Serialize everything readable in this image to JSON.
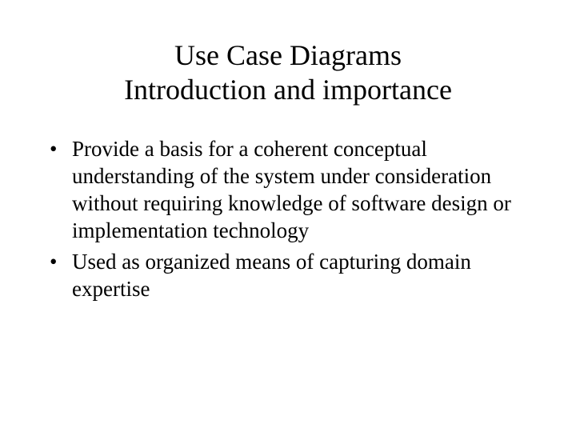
{
  "title": {
    "line1": "Use Case Diagrams",
    "line2": "Introduction and importance",
    "fontsize": 36,
    "color": "#000000"
  },
  "bullets": {
    "items": [
      "Provide a basis for a coherent conceptual understanding of the system under consideration without requiring knowledge of software design or implementation technology",
      "Used as organized means of capturing domain expertise"
    ],
    "fontsize": 27,
    "color": "#000000"
  },
  "background_color": "#ffffff",
  "font_family": "Times New Roman"
}
